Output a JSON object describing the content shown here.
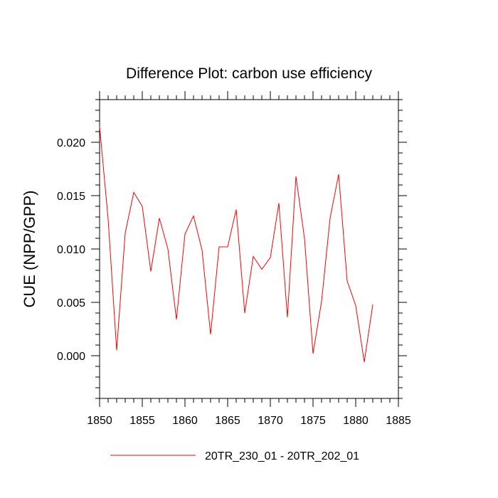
{
  "chart_data": {
    "type": "line",
    "title": "Difference Plot: carbon use efficiency",
    "xlabel": "",
    "ylabel": "CUE  (NPP/GPP)",
    "xlim": [
      1850,
      1885
    ],
    "ylim": [
      -0.004,
      0.024
    ],
    "x_ticks": [
      1850,
      1855,
      1860,
      1865,
      1870,
      1875,
      1880,
      1885
    ],
    "x_tick_labels": [
      "1850",
      "1855",
      "1860",
      "1865",
      "1870",
      "1875",
      "1880",
      "1885"
    ],
    "y_ticks": [
      0.0,
      0.005,
      0.01,
      0.015,
      0.02
    ],
    "y_tick_labels": [
      "0.000",
      "0.005",
      "0.010",
      "0.015",
      "0.020"
    ],
    "grid": false,
    "legend_position": "bottom-center",
    "series": [
      {
        "name": "20TR_230_01 - 20TR_202_01",
        "color": "#ff0000",
        "x": [
          1850,
          1851,
          1852,
          1853,
          1854,
          1855,
          1856,
          1857,
          1858,
          1859,
          1860,
          1861,
          1862,
          1863,
          1864,
          1865,
          1866,
          1867,
          1868,
          1869,
          1870,
          1871,
          1872,
          1873,
          1874,
          1875,
          1876,
          1877,
          1878,
          1879,
          1880,
          1881,
          1882
        ],
        "values": [
          0.0215,
          0.0128,
          0.0005,
          0.0115,
          0.0153,
          0.014,
          0.0079,
          0.0129,
          0.01,
          0.0034,
          0.0114,
          0.0131,
          0.0099,
          0.002,
          0.0102,
          0.0102,
          0.0137,
          0.004,
          0.0093,
          0.0081,
          0.0092,
          0.0143,
          0.0036,
          0.0168,
          0.011,
          0.0002,
          0.0051,
          0.0129,
          0.017,
          0.007,
          0.0047,
          -0.0006,
          0.0048
        ]
      }
    ]
  }
}
